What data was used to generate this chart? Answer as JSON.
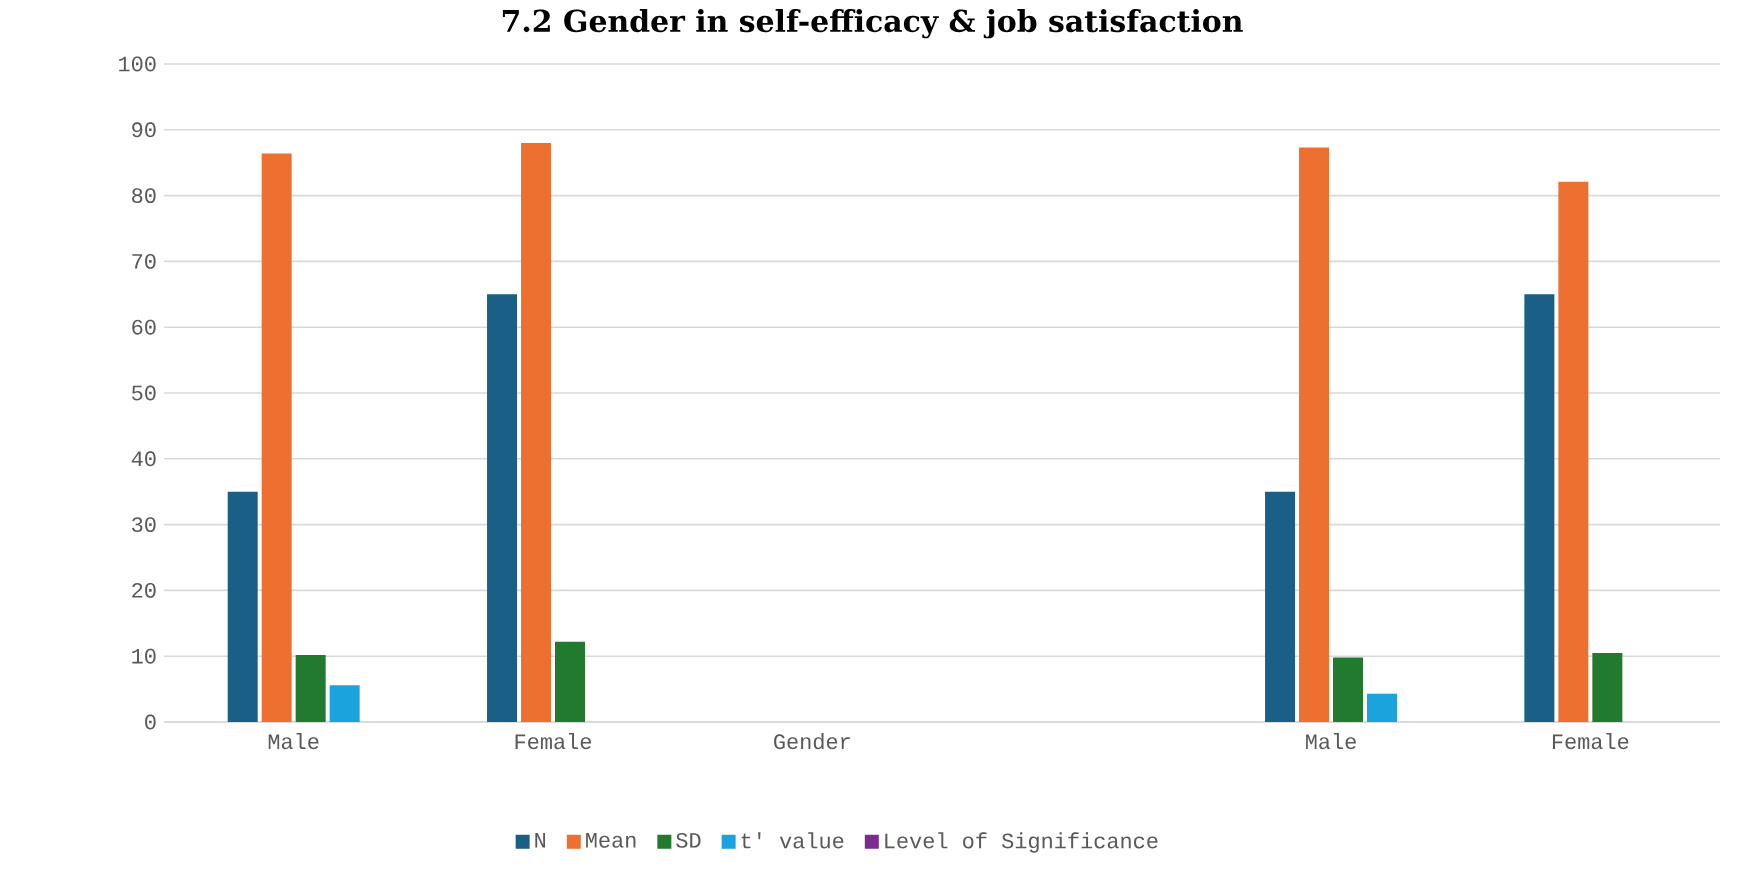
{
  "chart_data": {
    "type": "bar",
    "title": "7.2 Gender in self-efficacy & job satisfaction",
    "categories": [
      "Male",
      "Female",
      "Gender",
      null,
      "Male",
      "Female"
    ],
    "series": [
      {
        "name": "N",
        "color": "#1a5f86",
        "values": [
          35,
          65,
          null,
          null,
          35,
          65
        ]
      },
      {
        "name": "Mean",
        "color": "#ed7031",
        "values": [
          86.4,
          88,
          null,
          null,
          87.3,
          82.1
        ]
      },
      {
        "name": "SD",
        "color": "#217a2e",
        "values": [
          10.2,
          12.2,
          null,
          null,
          9.8,
          10.5
        ]
      },
      {
        "name": "t' value",
        "color": "#1aa3dc",
        "values": [
          5.6,
          null,
          null,
          null,
          4.3,
          null
        ]
      },
      {
        "name": "Level of Significance",
        "color": "#7d2b8f",
        "values": [
          null,
          null,
          null,
          null,
          null,
          null
        ]
      }
    ],
    "ylim": [
      0,
      100
    ],
    "yticks": [
      0,
      10,
      20,
      30,
      40,
      50,
      60,
      70,
      80,
      90,
      100
    ],
    "grid": "y",
    "legend": "bottom"
  }
}
